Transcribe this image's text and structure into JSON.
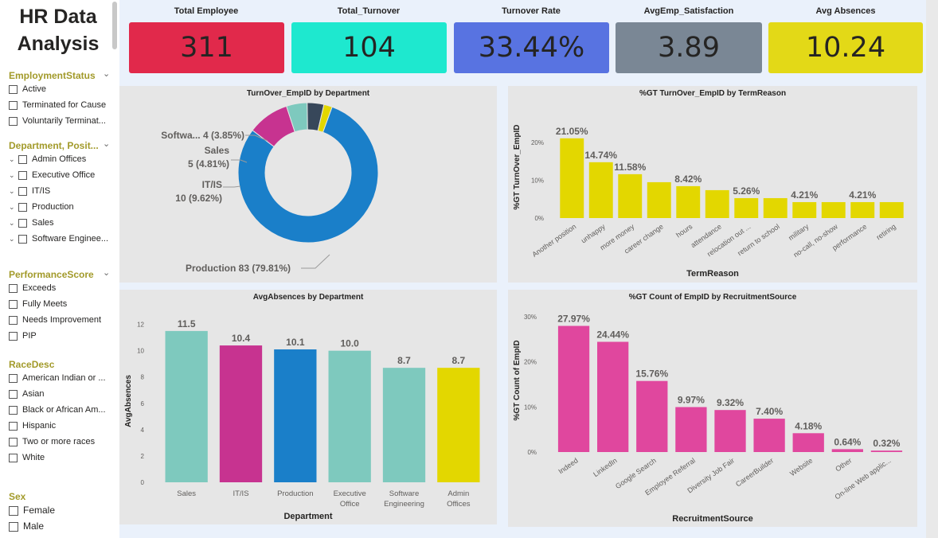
{
  "app_title": "HR Data Analysis",
  "slicers": {
    "employment_status": {
      "title": "EmploymentStatus",
      "options": [
        "Active",
        "Terminated for Cause",
        "Voluntarily Terminat..."
      ]
    },
    "department": {
      "title": "Department, Posit...",
      "options": [
        "Admin Offices",
        "Executive Office",
        "IT/IS",
        "Production",
        "Sales",
        "Software Enginee..."
      ]
    },
    "performance": {
      "title": "PerformanceScore",
      "options": [
        "Exceeds",
        "Fully Meets",
        "Needs Improvement",
        "PIP"
      ]
    },
    "race": {
      "title": "RaceDesc",
      "options": [
        "American Indian or ...",
        "Asian",
        "Black or African Am...",
        "Hispanic",
        "Two or more races",
        "White"
      ]
    },
    "sex": {
      "title": "Sex",
      "options": [
        "Female",
        "Male"
      ]
    }
  },
  "kpis": [
    {
      "label": "Total Employee",
      "value": "311",
      "color": "#e1294b"
    },
    {
      "label": "Total_Turnover",
      "value": "104",
      "color": "#1ee8cf"
    },
    {
      "label": "Turnover Rate",
      "value": "33.44%",
      "color": "#5873e1"
    },
    {
      "label": "AvgEmp_Satisfaction",
      "value": "3.89",
      "color": "#7a8795"
    },
    {
      "label": "Avg Absences",
      "value": "10.24",
      "color": "#e3d917"
    }
  ],
  "donut": {
    "title": "TurnOver_EmpID by Department",
    "labels": [
      {
        "name": "Softwa...",
        "text": "4 (3.85%)"
      },
      {
        "name": "Sales",
        "text": "5 (4.81%)"
      },
      {
        "name": "IT/IS",
        "text": "10 (9.62%)"
      },
      {
        "name": "Production",
        "text": "83 (79.81%)"
      }
    ]
  },
  "term_chart": {
    "title": "%GT TurnOver_EmpID by TermReason",
    "xlabel": "TermReason",
    "ylabel": "%GT TurnOver_EmpID"
  },
  "abs_chart": {
    "title": "AvgAbsences by Department",
    "xlabel": "Department",
    "ylabel": "AvgAbsences"
  },
  "rec_chart": {
    "title": "%GT Count of EmpID by RecruitmentSource",
    "xlabel": "RecruitmentSource",
    "ylabel": "%GT Count of EmpID"
  },
  "chart_data": [
    {
      "type": "pie",
      "title": "TurnOver_EmpID by Department",
      "categories": [
        "Production",
        "IT/IS",
        "Sales",
        "Software Engineering",
        "Executive Office"
      ],
      "values": [
        83,
        10,
        5,
        4,
        2
      ],
      "colors": [
        "#1a7fc9",
        "#c73390",
        "#7ec9be",
        "#37475a",
        "#e3d700"
      ]
    },
    {
      "type": "bar",
      "title": "%GT TurnOver_EmpID by TermReason",
      "xlabel": "TermReason",
      "ylabel": "%GT TurnOver_EmpID",
      "categories": [
        "Another position",
        "unhappy",
        "more money",
        "career change",
        "hours",
        "attendance",
        "relocation out ...",
        "return to school",
        "military",
        "no-call, no-show",
        "performance",
        "retiring"
      ],
      "values": [
        21.05,
        14.74,
        11.58,
        9.47,
        8.42,
        7.37,
        5.26,
        5.26,
        4.21,
        4.21,
        4.21,
        4.21
      ],
      "data_labels": [
        "21.05%",
        "14.74%",
        "11.58%",
        "",
        "8.42%",
        "",
        "5.26%",
        "",
        "4.21%",
        "",
        "4.21%",
        ""
      ],
      "ylim": [
        0,
        25
      ],
      "yticks": [
        "0%",
        "10%",
        "20%"
      ],
      "color": "#e3d700"
    },
    {
      "type": "bar",
      "title": "AvgAbsences by Department",
      "xlabel": "Department",
      "ylabel": "AvgAbsences",
      "categories": [
        "Sales",
        "IT/IS",
        "Production",
        "Executive Office",
        "Software Engineering",
        "Admin Offices"
      ],
      "tick_lines": [
        [
          "Sales"
        ],
        [
          "IT/IS"
        ],
        [
          "Production"
        ],
        [
          "Executive",
          "Office"
        ],
        [
          "Software",
          "Engineering"
        ],
        [
          "Admin",
          "Offices"
        ]
      ],
      "values": [
        11.5,
        10.4,
        10.1,
        10.0,
        8.7,
        8.7
      ],
      "data_labels": [
        "11.5",
        "10.4",
        "10.1",
        "10.0",
        "8.7",
        "8.7"
      ],
      "ylim": [
        0,
        12.4
      ],
      "yticks": [
        "0",
        "2",
        "4",
        "6",
        "8",
        "10",
        "12"
      ],
      "colors": [
        "#7ec9be",
        "#c73390",
        "#1a7fc9",
        "#7ec9be",
        "#7ec9be",
        "#e3d700"
      ]
    },
    {
      "type": "bar",
      "title": "%GT Count of EmpID by RecruitmentSource",
      "xlabel": "RecruitmentSource",
      "ylabel": "%GT Count of EmpID",
      "categories": [
        "Indeed",
        "LinkedIn",
        "Google Search",
        "Employee Referral",
        "Diversity Job Fair",
        "CareerBuilder",
        "Website",
        "Other",
        "On-line Web applic..."
      ],
      "values": [
        27.97,
        24.44,
        15.76,
        9.97,
        9.32,
        7.4,
        4.18,
        0.64,
        0.32
      ],
      "data_labels": [
        "27.97%",
        "24.44%",
        "15.76%",
        "9.97%",
        "9.32%",
        "7.40%",
        "4.18%",
        "0.64%",
        "0.32%"
      ],
      "ylim": [
        0,
        30
      ],
      "yticks": [
        "0%",
        "10%",
        "20%",
        "30%"
      ],
      "color": "#e0479e"
    }
  ]
}
